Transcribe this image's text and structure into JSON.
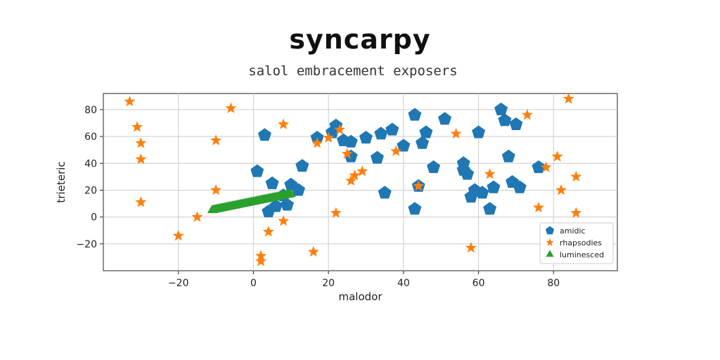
{
  "chart_data": {
    "type": "scatter",
    "title": "syncarpy",
    "subtitle": "salol embracement exposers",
    "xlabel": "malodor",
    "ylabel": "trieteric",
    "xlim": [
      -40,
      97
    ],
    "ylim": [
      -40,
      92
    ],
    "x_ticks": [
      -20,
      0,
      20,
      40,
      60,
      80
    ],
    "y_ticks": [
      -20,
      0,
      20,
      40,
      60,
      80
    ],
    "grid": true,
    "legend_position": "lower-right",
    "series": [
      {
        "name": "amidic",
        "marker": "pentagon",
        "color": "#1f77b4",
        "points": [
          [
            1,
            34
          ],
          [
            3,
            61
          ],
          [
            4,
            4
          ],
          [
            5,
            25
          ],
          [
            6,
            8
          ],
          [
            8,
            16
          ],
          [
            9,
            9
          ],
          [
            10,
            24
          ],
          [
            12,
            20
          ],
          [
            13,
            38
          ],
          [
            17,
            59
          ],
          [
            21,
            63
          ],
          [
            22,
            68
          ],
          [
            24,
            57
          ],
          [
            26,
            56
          ],
          [
            26,
            45
          ],
          [
            30,
            59
          ],
          [
            33,
            44
          ],
          [
            34,
            62
          ],
          [
            35,
            18
          ],
          [
            37,
            65
          ],
          [
            40,
            53
          ],
          [
            43,
            76
          ],
          [
            43,
            6
          ],
          [
            44,
            23
          ],
          [
            46,
            63
          ],
          [
            48,
            37
          ],
          [
            51,
            73
          ],
          [
            56,
            40
          ],
          [
            57,
            32
          ],
          [
            58,
            15
          ],
          [
            60,
            63
          ],
          [
            61,
            18
          ],
          [
            63,
            6
          ],
          [
            66,
            80
          ],
          [
            67,
            72
          ],
          [
            68,
            45
          ],
          [
            69,
            26
          ],
          [
            70,
            69
          ],
          [
            71,
            22
          ],
          [
            76,
            37
          ],
          [
            45,
            55
          ],
          [
            56,
            35
          ],
          [
            64,
            22
          ],
          [
            59,
            20
          ]
        ]
      },
      {
        "name": "rhapsodies",
        "marker": "star",
        "color": "#ff7f0e",
        "points": [
          [
            -33,
            86
          ],
          [
            -31,
            67
          ],
          [
            -30,
            55
          ],
          [
            -30,
            43
          ],
          [
            -30,
            11
          ],
          [
            -20,
            -14
          ],
          [
            -15,
            0
          ],
          [
            -10,
            57
          ],
          [
            -10,
            20
          ],
          [
            -6,
            81
          ],
          [
            2,
            -29
          ],
          [
            2,
            -33
          ],
          [
            4,
            -11
          ],
          [
            8,
            -3
          ],
          [
            8,
            69
          ],
          [
            16,
            -26
          ],
          [
            17,
            55
          ],
          [
            20,
            59
          ],
          [
            22,
            3
          ],
          [
            23,
            65
          ],
          [
            25,
            47
          ],
          [
            26,
            27
          ],
          [
            27,
            31
          ],
          [
            29,
            34
          ],
          [
            38,
            49
          ],
          [
            44,
            23
          ],
          [
            54,
            62
          ],
          [
            58,
            -23
          ],
          [
            63,
            32
          ],
          [
            73,
            76
          ],
          [
            76,
            7
          ],
          [
            78,
            37
          ],
          [
            81,
            45
          ],
          [
            82,
            20
          ],
          [
            84,
            88
          ],
          [
            86,
            3
          ],
          [
            86,
            30
          ]
        ]
      },
      {
        "name": "luminesced",
        "marker": "triangle",
        "color": "#2ca02c",
        "x_range": [
          -11,
          10
        ],
        "y_range": [
          5,
          17
        ],
        "count": 60
      }
    ]
  }
}
